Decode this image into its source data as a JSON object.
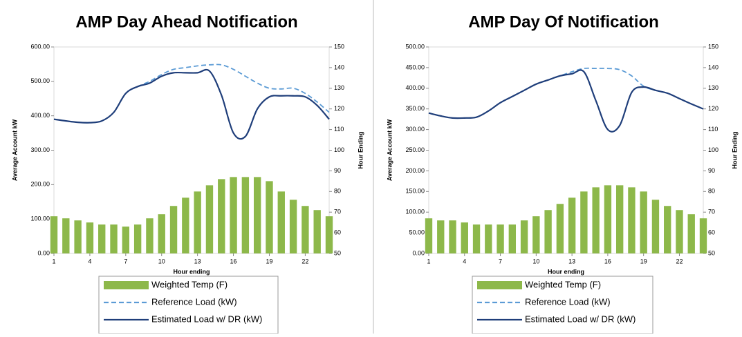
{
  "chart_data": [
    {
      "type": "bar",
      "title": "AMP Day Ahead Notification",
      "xlabel": "Hour ending",
      "ylabel": "Average Account kW",
      "y2label": "Hour Ending",
      "x": [
        1,
        2,
        3,
        4,
        5,
        6,
        7,
        8,
        9,
        10,
        11,
        12,
        13,
        14,
        15,
        16,
        17,
        18,
        19,
        20,
        21,
        22,
        23,
        24
      ],
      "xlim": [
        1,
        24
      ],
      "xticks": [
        1,
        4,
        7,
        10,
        13,
        16,
        19,
        22
      ],
      "ylim": [
        0,
        600
      ],
      "yticks": [
        {
          "value": 0,
          "label": "0.00"
        },
        {
          "value": 100,
          "label": "100.00"
        },
        {
          "value": 200,
          "label": "200.00"
        },
        {
          "value": 300,
          "label": "300.00"
        },
        {
          "value": 400,
          "label": "400.00"
        },
        {
          "value": 500,
          "label": "500.00"
        },
        {
          "value": 600,
          "label": "600.00"
        }
      ],
      "y2lim": [
        50,
        150
      ],
      "y2ticks": [
        50,
        60,
        70,
        80,
        90,
        100,
        110,
        120,
        130,
        140,
        150
      ],
      "series": [
        {
          "name": "Weighted Temp (F)",
          "kind": "bar",
          "axis": "y2",
          "color": "#8db84a",
          "values": [
            68,
            67,
            66,
            65,
            64,
            64,
            63,
            64,
            67,
            69,
            73,
            77,
            80,
            83,
            86,
            87,
            87,
            87,
            85,
            80,
            76,
            73,
            71,
            68
          ]
        },
        {
          "name": "Reference Load (kW)",
          "kind": "line",
          "dashed": true,
          "color": "#5b9bd5",
          "values": [
            390,
            385,
            381,
            380,
            385,
            410,
            465,
            485,
            500,
            520,
            535,
            540,
            545,
            548,
            548,
            535,
            515,
            495,
            480,
            478,
            480,
            465,
            440,
            410
          ]
        },
        {
          "name": "Estimated Load w/ DR (kW)",
          "kind": "line",
          "color": "#1f3e7a",
          "values": [
            390,
            385,
            381,
            380,
            385,
            410,
            465,
            485,
            495,
            515,
            525,
            525,
            525,
            530,
            460,
            350,
            340,
            420,
            455,
            458,
            458,
            455,
            430,
            390
          ]
        }
      ]
    },
    {
      "type": "bar",
      "title": "AMP Day Of Notification",
      "xlabel": "Hour ending",
      "ylabel": "Average Account kW",
      "y2label": "Hour Ending",
      "x": [
        1,
        2,
        3,
        4,
        5,
        6,
        7,
        8,
        9,
        10,
        11,
        12,
        13,
        14,
        15,
        16,
        17,
        18,
        19,
        20,
        21,
        22,
        23,
        24
      ],
      "xlim": [
        1,
        24
      ],
      "xticks": [
        1,
        4,
        7,
        10,
        13,
        16,
        19,
        22
      ],
      "ylim": [
        0,
        500
      ],
      "yticks": [
        {
          "value": 0,
          "label": "0.00"
        },
        {
          "value": 50,
          "label": "50.00"
        },
        {
          "value": 100,
          "label": "100.00"
        },
        {
          "value": 150,
          "label": "150.00"
        },
        {
          "value": 200,
          "label": "200.00"
        },
        {
          "value": 250,
          "label": "250.00"
        },
        {
          "value": 300,
          "label": "300.00"
        },
        {
          "value": 350,
          "label": "350.00"
        },
        {
          "value": 400,
          "label": "400.00"
        },
        {
          "value": 450,
          "label": "450.00"
        },
        {
          "value": 500,
          "label": "500.00"
        }
      ],
      "y2lim": [
        50,
        150
      ],
      "y2ticks": [
        50,
        60,
        70,
        80,
        90,
        100,
        110,
        120,
        130,
        140,
        150
      ],
      "series": [
        {
          "name": "Weighted Temp (F)",
          "kind": "bar",
          "axis": "y2",
          "color": "#8db84a",
          "values": [
            67,
            66,
            66,
            65,
            64,
            64,
            64,
            64,
            66,
            68,
            71,
            74,
            77,
            80,
            82,
            83,
            83,
            82,
            80,
            76,
            73,
            71,
            69,
            67
          ]
        },
        {
          "name": "Reference Load (kW)",
          "kind": "line",
          "dashed": true,
          "color": "#5b9bd5",
          "values": [
            340,
            333,
            328,
            328,
            330,
            345,
            365,
            380,
            395,
            410,
            420,
            430,
            440,
            448,
            448,
            448,
            445,
            430,
            405,
            395,
            388,
            375,
            362,
            350
          ]
        },
        {
          "name": "Estimated Load w/ DR (kW)",
          "kind": "line",
          "color": "#1f3e7a",
          "values": [
            340,
            333,
            328,
            328,
            330,
            345,
            365,
            380,
            395,
            410,
            420,
            430,
            435,
            440,
            370,
            300,
            310,
            390,
            403,
            395,
            388,
            375,
            362,
            350
          ]
        }
      ]
    }
  ]
}
